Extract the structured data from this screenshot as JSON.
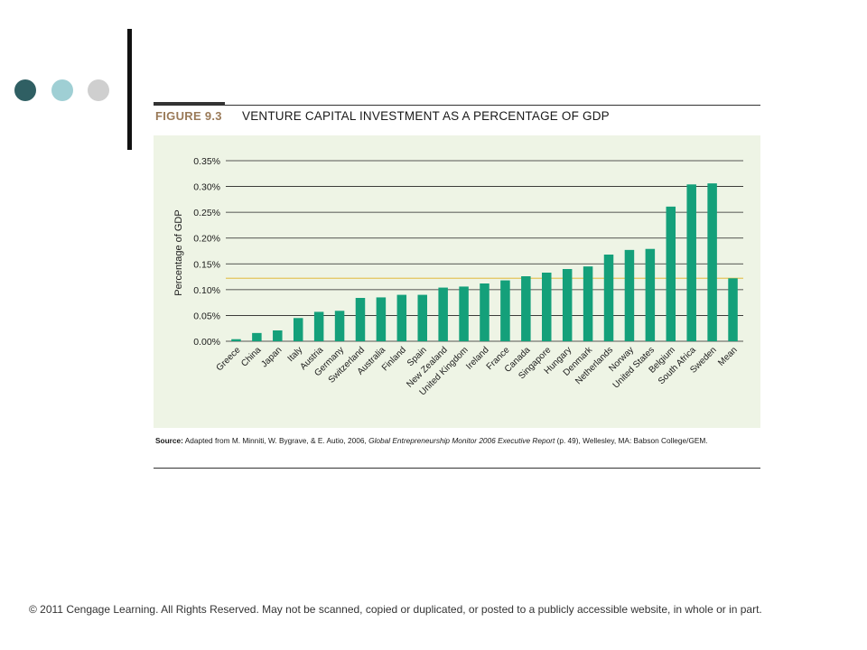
{
  "figure": {
    "label": "FIGURE 9.3",
    "title": "VENTURE CAPITAL INVESTMENT AS A PERCENTAGE OF GDP"
  },
  "chart_data": {
    "type": "bar",
    "title": "VENTURE CAPITAL INVESTMENT AS A PERCENTAGE OF GDP",
    "xlabel": "",
    "ylabel": "Percentage of GDP",
    "ylim": [
      0,
      0.35
    ],
    "y_unit": "%",
    "yticks": [
      "0.00%",
      "0.05%",
      "0.10%",
      "0.15%",
      "0.20%",
      "0.25%",
      "0.30%",
      "0.35%"
    ],
    "grid": "horizontal",
    "bar_color": "#14a07a",
    "mean_line_color": "#e2c55a",
    "mean_value": 0.122,
    "categories": [
      "Greece",
      "China",
      "Japan",
      "Italy",
      "Austria",
      "Germany",
      "Switzerland",
      "Australia",
      "Finland",
      "Spain",
      "New Zealand",
      "United Kingdom",
      "Ireland",
      "France",
      "Canada",
      "Singapore",
      "Hungary",
      "Denmark",
      "Netherlands",
      "Norway",
      "United States",
      "Belgium",
      "South Africa",
      "Sweden",
      "Mean"
    ],
    "values": [
      0.004,
      0.016,
      0.021,
      0.045,
      0.057,
      0.059,
      0.084,
      0.085,
      0.09,
      0.09,
      0.104,
      0.106,
      0.112,
      0.118,
      0.126,
      0.133,
      0.14,
      0.145,
      0.168,
      0.177,
      0.179,
      0.261,
      0.304,
      0.306,
      0.122
    ]
  },
  "source": {
    "label": "Source:",
    "text_before": " Adapted from M. Minniti, W. Bygrave, & E. Autio, 2006, ",
    "italic": "Global Entrepreneurship Monitor 2006 Executive Report",
    "text_after": " (p. 49), Wellesley, MA: Babson College/GEM."
  },
  "footer": {
    "copyright": "© 2011 Cengage Learning. All Rights Reserved. May not be scanned, copied or duplicated, or posted to a publicly accessible website, in whole or in part."
  }
}
